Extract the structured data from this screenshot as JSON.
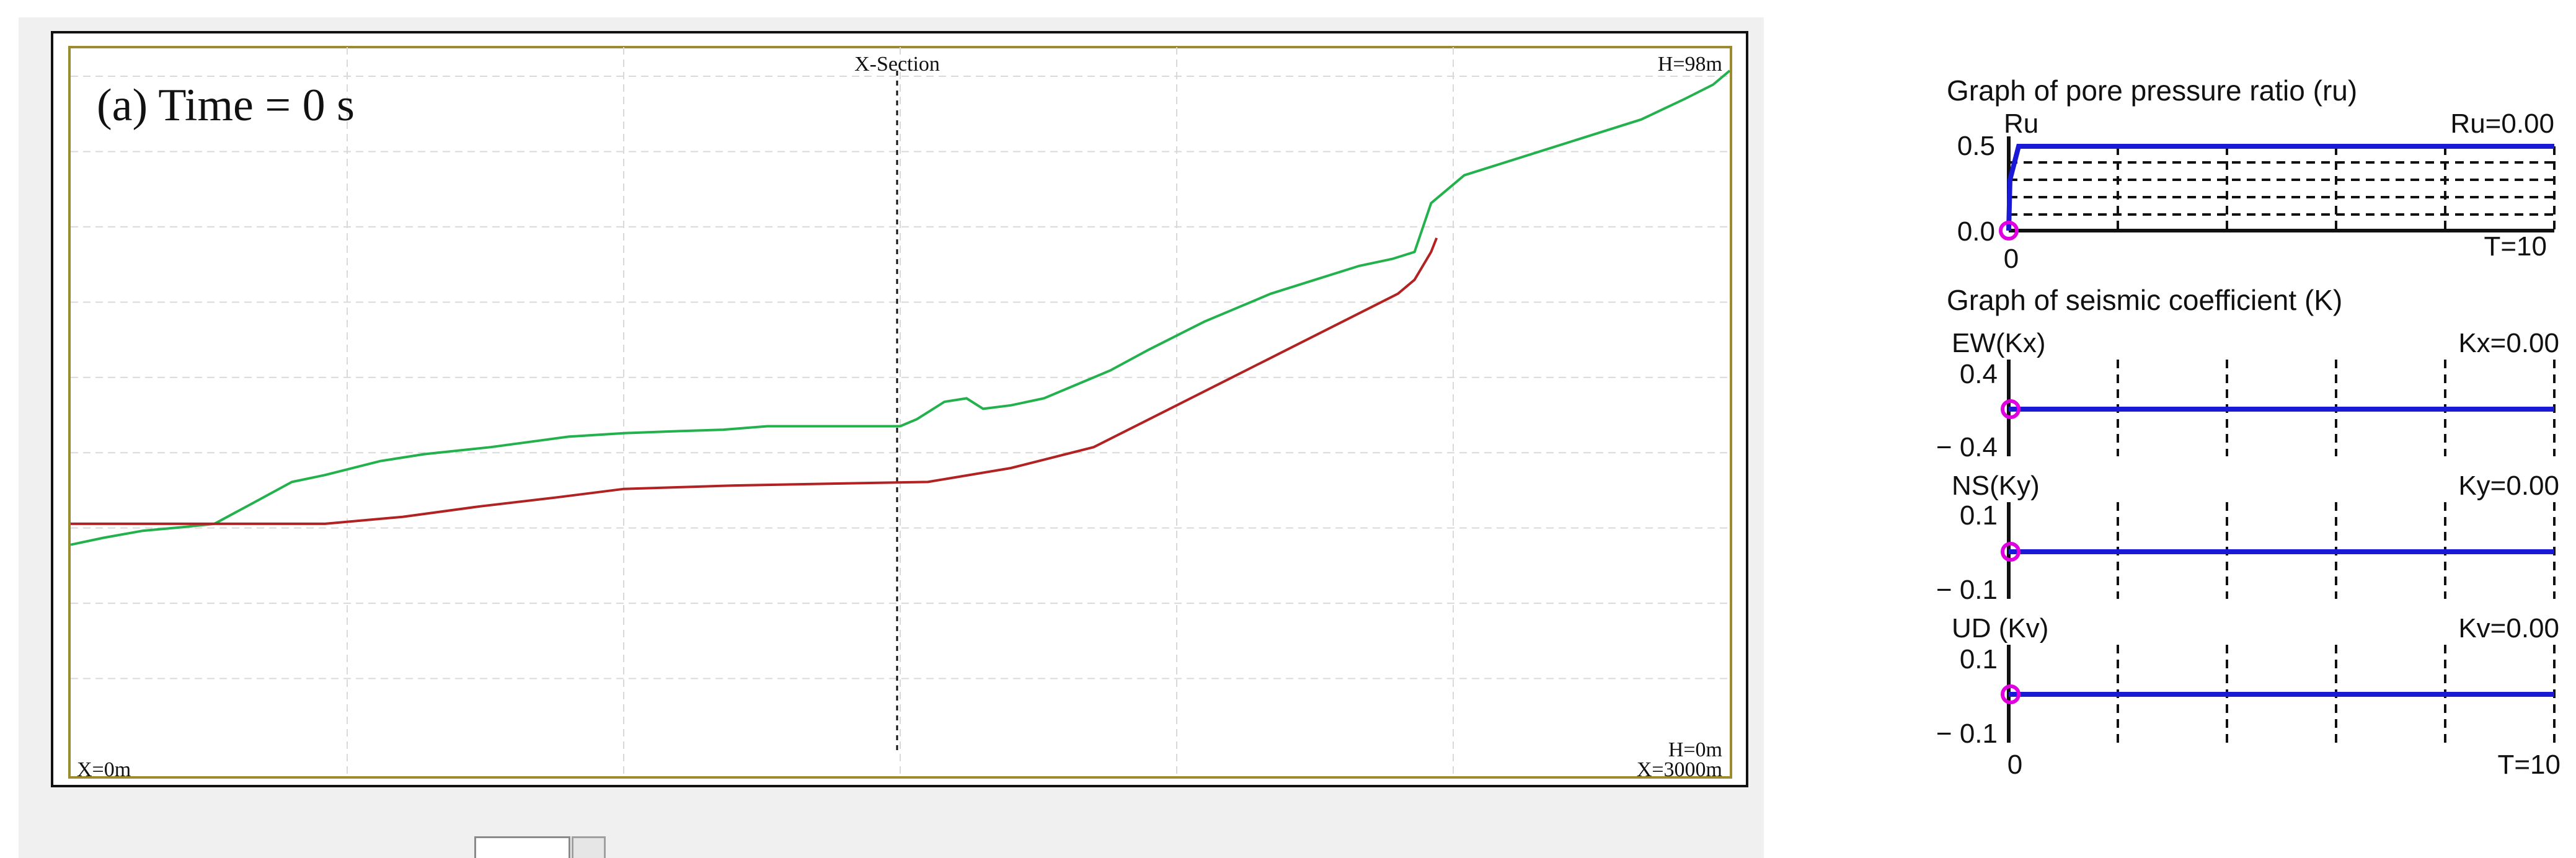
{
  "section_view": {
    "panel_title": "(a) Time = 0 s",
    "center_label": "X-Section",
    "top_right_label": "H=98m",
    "bottom_right_height_label": "H=0m",
    "bottom_left_label": "X=0m",
    "bottom_right_label": "X=3000m",
    "colors": {
      "ground_surface": "#22b14c",
      "sliding_surface": "#b22222",
      "frame_inner": "#9c8a2c",
      "grid": "#d9d9d9"
    }
  },
  "ru_graph": {
    "title": "Graph of pore pressure ratio (ru)",
    "y_label": "Ru",
    "value_label": "Ru=0.00",
    "tick_top": "0.5",
    "tick_bottom": "0.0",
    "x_start": "0",
    "x_end": "T=10"
  },
  "seismic_section": {
    "title": "Graph of seismic coefficient (K)",
    "graphs": [
      {
        "label": "EW(Kx)",
        "value_label": "Kx=0.00",
        "tick_top": "0.4",
        "tick_bottom": "− 0.4"
      },
      {
        "label": "NS(Ky)",
        "value_label": "Ky=0.00",
        "tick_top": "0.1",
        "tick_bottom": "− 0.1"
      },
      {
        "label": "UD (Kv)",
        "value_label": "Kv=0.00",
        "tick_top": "0.1",
        "tick_bottom": "− 0.1"
      }
    ],
    "x_start": "0",
    "x_end": "T=10"
  },
  "chart_data": {
    "type": "line",
    "x_range": [
      0,
      3000
    ],
    "y_range": [
      0,
      98
    ],
    "series": [
      {
        "x": [
          0,
          60,
          130,
          200,
          260,
          330,
          400,
          460,
          560,
          640,
          760,
          900,
          1000,
          1100,
          1180,
          1260,
          1340,
          1420,
          1500,
          1530,
          1580,
          1620,
          1650,
          1700,
          1760,
          1820,
          1880,
          1950,
          2000,
          2050,
          2110,
          2170,
          2250,
          2330,
          2390,
          2430,
          2460,
          2490,
          2520,
          2600,
          2680,
          2760,
          2840,
          2920,
          2970,
          3000
        ],
        "y": [
          30,
          31,
          32,
          32.5,
          33,
          36,
          39,
          40,
          42,
          43,
          44,
          45.5,
          46,
          46.3,
          46.5,
          47,
          47,
          47,
          47,
          48,
          50.5,
          51,
          49.5,
          50,
          51,
          53,
          55,
          58,
          60,
          62,
          64,
          66,
          68,
          70,
          71,
          72,
          79,
          81,
          83,
          85,
          87,
          89,
          91,
          94,
          96,
          98
        ]
      },
      {
        "x": [
          0,
          320,
          460,
          600,
          740,
          880,
          1000,
          1200,
          1400,
          1550,
          1700,
          1850,
          2000,
          2100,
          2200,
          2300,
          2350,
          2400,
          2430,
          2460,
          2470
        ],
        "y": [
          33,
          33,
          33,
          34,
          35.5,
          36.8,
          38,
          38.5,
          38.8,
          39,
          41,
          44,
          50,
          54,
          58,
          62,
          64,
          66,
          68,
          72,
          74
        ]
      }
    ],
    "grid": true,
    "section_marker_x": 1500
  }
}
